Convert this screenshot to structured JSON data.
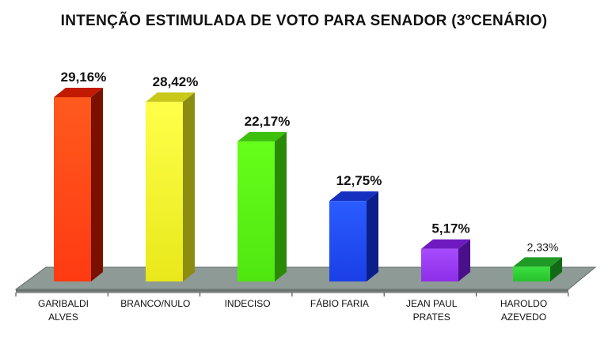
{
  "chart_data": {
    "type": "bar",
    "title": "INTENÇÃO ESTIMULADA DE VOTO PARA SENADOR (3ºCENÁRIO)",
    "categories": [
      [
        "GARIBALDI",
        "ALVES"
      ],
      [
        "BRANCO/NULO"
      ],
      [
        "INDECISO"
      ],
      [
        "FÁBIO FARIA"
      ],
      [
        "JEAN PAUL",
        "PRATES"
      ],
      [
        "HAROLDO",
        "AZEVEDO"
      ]
    ],
    "values": [
      29.16,
      28.42,
      22.17,
      12.75,
      5.17,
      2.33
    ],
    "value_labels": [
      "29,16%",
      "28,42%",
      "22,17%",
      "12,75%",
      "5,17%",
      "2,33%"
    ],
    "ylim": [
      0,
      30
    ],
    "colors": [
      {
        "top": "#ff5a1e",
        "bottom": "#ff3a12",
        "side": "#7a1000",
        "cap": "#c21a00"
      },
      {
        "top": "#ffff4a",
        "bottom": "#e8e81a",
        "side": "#8c8c10",
        "cap": "#c9c91a"
      },
      {
        "top": "#66ff1a",
        "bottom": "#4ee610",
        "side": "#2a8a06",
        "cap": "#3cc00c"
      },
      {
        "top": "#2a5cff",
        "bottom": "#1a3fe6",
        "side": "#0a1f8a",
        "cap": "#1530c0"
      },
      {
        "top": "#a84cff",
        "bottom": "#8c2ee6",
        "side": "#4a108a",
        "cap": "#6e1ac0"
      },
      {
        "top": "#3ae040",
        "bottom": "#28c02e",
        "side": "#136a16",
        "cap": "#1f9a24"
      }
    ],
    "floor_color": "#8d9a95",
    "legend": "none",
    "grid": false
  }
}
